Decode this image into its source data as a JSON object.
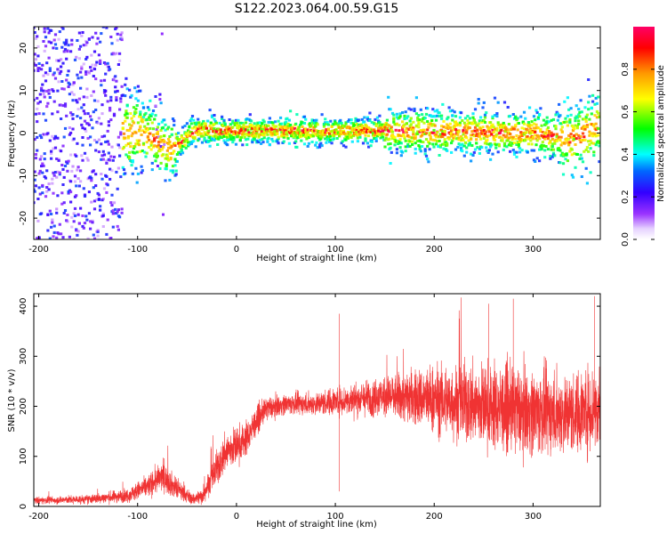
{
  "figure_title": "S122.2023.064.00.59.G15",
  "chart_data": [
    {
      "type": "heatmap",
      "xlabel": "Height of straight line (km)",
      "ylabel": "Frequency (Hz)",
      "xlim": [
        -205,
        368
      ],
      "ylim": [
        -25,
        25
      ],
      "x_ticks": [
        -200,
        -100,
        0,
        100,
        200,
        300
      ],
      "y_ticks": [
        -20,
        -10,
        0,
        10,
        20
      ],
      "colorbar": {
        "label": "Normalized spectral amplitude",
        "range": [
          0.0,
          1.0
        ],
        "ticks": [
          0.0,
          0.2,
          0.4,
          0.6,
          0.8
        ],
        "colormap": [
          "#ffffff",
          "#d9c2ff",
          "#7a00ff",
          "#0000ff",
          "#00ffff",
          "#00ff00",
          "#ffff00",
          "#ff8000",
          "#ff0000",
          "#ff0080"
        ]
      },
      "ridge": {
        "description_points_x": [
          -120,
          -100,
          -85,
          -75,
          -65,
          -55,
          -45,
          -35,
          -20,
          0,
          50,
          100,
          150,
          200,
          250,
          300,
          340,
          368
        ],
        "description_points_y": [
          0,
          0,
          -1,
          -3,
          -4,
          -2,
          0,
          1,
          0.5,
          0.5,
          0.5,
          0.5,
          0.5,
          0.3,
          0.3,
          0,
          -1.5,
          1.5
        ]
      }
    },
    {
      "type": "line",
      "xlabel": "Height of straight line (km)",
      "ylabel": "SNR (10 * v/v)",
      "xlim": [
        -205,
        368
      ],
      "ylim": [
        0,
        425
      ],
      "x_ticks": [
        -200,
        -100,
        0,
        100,
        200,
        300
      ],
      "y_ticks": [
        0,
        100,
        200,
        300,
        400
      ],
      "color": "#f03333",
      "envelope": {
        "x": [
          -205,
          -150,
          -110,
          -90,
          -75,
          -60,
          -45,
          -35,
          -20,
          -10,
          0,
          10,
          20,
          30,
          50,
          80,
          100,
          150,
          200,
          250,
          300,
          340,
          368
        ],
        "y_mean": [
          12,
          14,
          22,
          40,
          60,
          35,
          15,
          20,
          75,
          110,
          120,
          135,
          170,
          195,
          205,
          205,
          210,
          220,
          215,
          200,
          190,
          185,
          200
        ],
        "y_spread": [
          6,
          8,
          12,
          20,
          25,
          20,
          10,
          15,
          30,
          35,
          35,
          30,
          25,
          20,
          18,
          20,
          25,
          35,
          60,
          75,
          75,
          70,
          80
        ]
      },
      "spikes": [
        {
          "x": 104,
          "y": 385
        },
        {
          "x": 104,
          "y": 30
        },
        {
          "x": 255,
          "y": 405
        },
        {
          "x": 280,
          "y": 415
        },
        {
          "x": 362,
          "y": 420
        }
      ]
    }
  ]
}
